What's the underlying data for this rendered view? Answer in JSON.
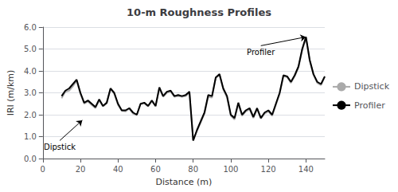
{
  "chart_data": {
    "type": "line",
    "title": "10-m Roughness Profiles",
    "xlabel": "Distance (m)",
    "ylabel": "IRI (m/km)",
    "xlim": [
      0,
      150
    ],
    "ylim": [
      0.0,
      6.0
    ],
    "xticks": [
      0,
      20,
      40,
      60,
      80,
      100,
      120,
      140
    ],
    "yticks": [
      {
        "value": 0.0,
        "label": "0.0"
      },
      {
        "value": 1.0,
        "label": "1.0"
      },
      {
        "value": 2.0,
        "label": "2.0"
      },
      {
        "value": 3.0,
        "label": "3.0"
      },
      {
        "value": 4.0,
        "label": "4.0"
      },
      {
        "value": 5.0,
        "label": "5.0"
      },
      {
        "value": 6.0,
        "label": "6.0"
      }
    ],
    "grid": true,
    "legend": "right",
    "x": [
      10,
      12,
      14,
      16,
      18,
      20,
      22,
      24,
      26,
      28,
      30,
      32,
      34,
      36,
      38,
      40,
      42,
      44,
      46,
      48,
      50,
      52,
      54,
      56,
      58,
      60,
      62,
      64,
      66,
      68,
      70,
      72,
      74,
      76,
      78,
      80,
      82,
      84,
      86,
      88,
      90,
      92,
      94,
      96,
      98,
      100,
      102,
      104,
      106,
      108,
      110,
      112,
      114,
      116,
      118,
      120,
      122,
      124,
      126,
      128,
      130,
      132,
      134,
      136,
      138,
      140,
      142,
      144,
      146,
      148,
      150
    ],
    "series": [
      {
        "name": "Dipstick",
        "color": "#aaaaaa",
        "values": [
          2.75,
          3.05,
          3.1,
          3.3,
          3.55,
          2.95,
          2.5,
          2.6,
          2.45,
          2.3,
          2.65,
          2.38,
          2.52,
          3.18,
          2.95,
          2.45,
          2.18,
          2.15,
          2.28,
          2.05,
          1.98,
          2.48,
          2.52,
          2.38,
          2.62,
          2.38,
          3.2,
          2.82,
          3.0,
          3.05,
          2.82,
          2.85,
          2.82,
          2.85,
          3.0,
          0.82,
          1.25,
          1.65,
          2.05,
          2.82,
          2.78,
          3.68,
          3.82,
          3.15,
          2.78,
          1.95,
          1.78,
          2.48,
          1.95,
          2.15,
          2.25,
          1.85,
          2.25,
          1.82,
          2.05,
          2.15,
          1.95,
          2.45,
          2.95,
          3.75,
          3.72,
          3.45,
          3.75,
          4.15,
          4.95,
          5.5,
          4.45,
          3.82,
          3.45,
          3.35,
          3.72
        ]
      },
      {
        "name": "Profiler",
        "color": "#000000",
        "values": [
          2.85,
          3.1,
          3.2,
          3.4,
          3.6,
          3.0,
          2.55,
          2.65,
          2.5,
          2.35,
          2.7,
          2.4,
          2.55,
          3.2,
          3.0,
          2.5,
          2.2,
          2.2,
          2.3,
          2.1,
          2.0,
          2.5,
          2.55,
          2.4,
          2.65,
          2.4,
          3.25,
          2.85,
          3.05,
          3.1,
          2.85,
          2.9,
          2.85,
          2.9,
          3.05,
          0.82,
          1.3,
          1.7,
          2.1,
          2.9,
          2.85,
          3.7,
          3.85,
          3.2,
          2.85,
          2.0,
          1.85,
          2.55,
          2.0,
          2.2,
          2.3,
          1.9,
          2.3,
          1.85,
          2.1,
          2.2,
          2.0,
          2.5,
          3.0,
          3.8,
          3.75,
          3.5,
          3.8,
          4.2,
          5.0,
          5.55,
          4.5,
          3.85,
          3.5,
          3.4,
          3.75
        ]
      }
    ],
    "annotations": [
      {
        "text": "Dipstick",
        "xy": [
          21,
          1.75
        ],
        "xytext": [
          9,
          0.82
        ]
      },
      {
        "text": "Profiler",
        "xy": [
          140,
          5.55
        ],
        "xytext": [
          116,
          5.15
        ]
      }
    ]
  }
}
